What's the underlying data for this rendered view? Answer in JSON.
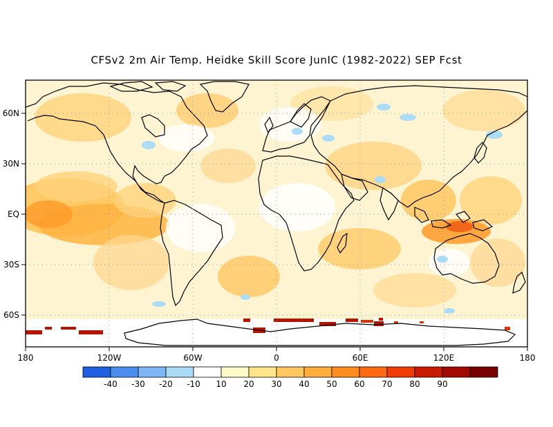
{
  "title": "CFSv2 2m Air Temp. Heidke Skill Score JunIC (1982-2022) SEP Fcst",
  "map": {
    "lat_labels": [
      "60N",
      "30N",
      "EQ",
      "30S",
      "60S"
    ],
    "lon_labels": [
      "180",
      "120W",
      "60W",
      "0",
      "60E",
      "120E",
      "180"
    ]
  },
  "colorbar": {
    "colors": [
      "#1f5fe0",
      "#4a8ff0",
      "#7fb6f5",
      "#aadcf7",
      "#ffffff",
      "#fffac8",
      "#ffe48a",
      "#ffc85e",
      "#ffae3c",
      "#ff8c1f",
      "#ff6a10",
      "#f03d06",
      "#c81a00",
      "#a00a00",
      "#780000"
    ],
    "labels": [
      "-40",
      "-30",
      "-20",
      "-10",
      "10",
      "20",
      "30",
      "40",
      "50",
      "60",
      "70",
      "80",
      "90"
    ]
  }
}
